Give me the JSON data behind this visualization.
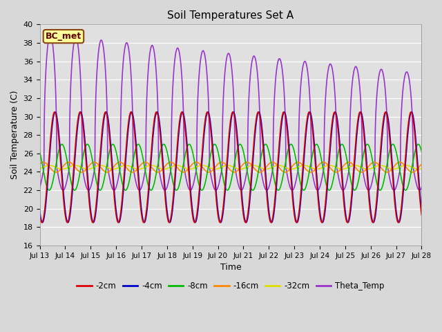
{
  "title": "Soil Temperatures Set A",
  "xlabel": "Time",
  "ylabel": "Soil Temperature (C)",
  "ylim": [
    16,
    40
  ],
  "xlim": [
    0,
    360
  ],
  "bg_color": "#e0e0e0",
  "annotation_text": "BC_met",
  "annotation_bg": "#ffff99",
  "annotation_border": "#8b4513",
  "series": {
    "-2cm": {
      "color": "#dd0000",
      "lw": 1.2
    },
    "-4cm": {
      "color": "#0000cc",
      "lw": 1.2
    },
    "-8cm": {
      "color": "#00bb00",
      "lw": 1.2
    },
    "-16cm": {
      "color": "#ff8800",
      "lw": 1.2
    },
    "-32cm": {
      "color": "#dddd00",
      "lw": 1.2
    },
    "Theta_Temp": {
      "color": "#9933cc",
      "lw": 1.2
    }
  },
  "xtick_labels": [
    "Jul 13",
    "Jul 14",
    "Jul 15",
    "Jul 16",
    "Jul 17",
    "Jul 18",
    "Jul 19",
    "Jul 20",
    "Jul 21",
    "Jul 22",
    "Jul 23",
    "Jul 24",
    "Jul 25",
    "Jul 26",
    "Jul 27",
    "Jul 28"
  ],
  "xtick_positions": [
    0,
    24,
    48,
    72,
    96,
    120,
    144,
    168,
    192,
    216,
    240,
    264,
    288,
    312,
    336,
    360
  ]
}
